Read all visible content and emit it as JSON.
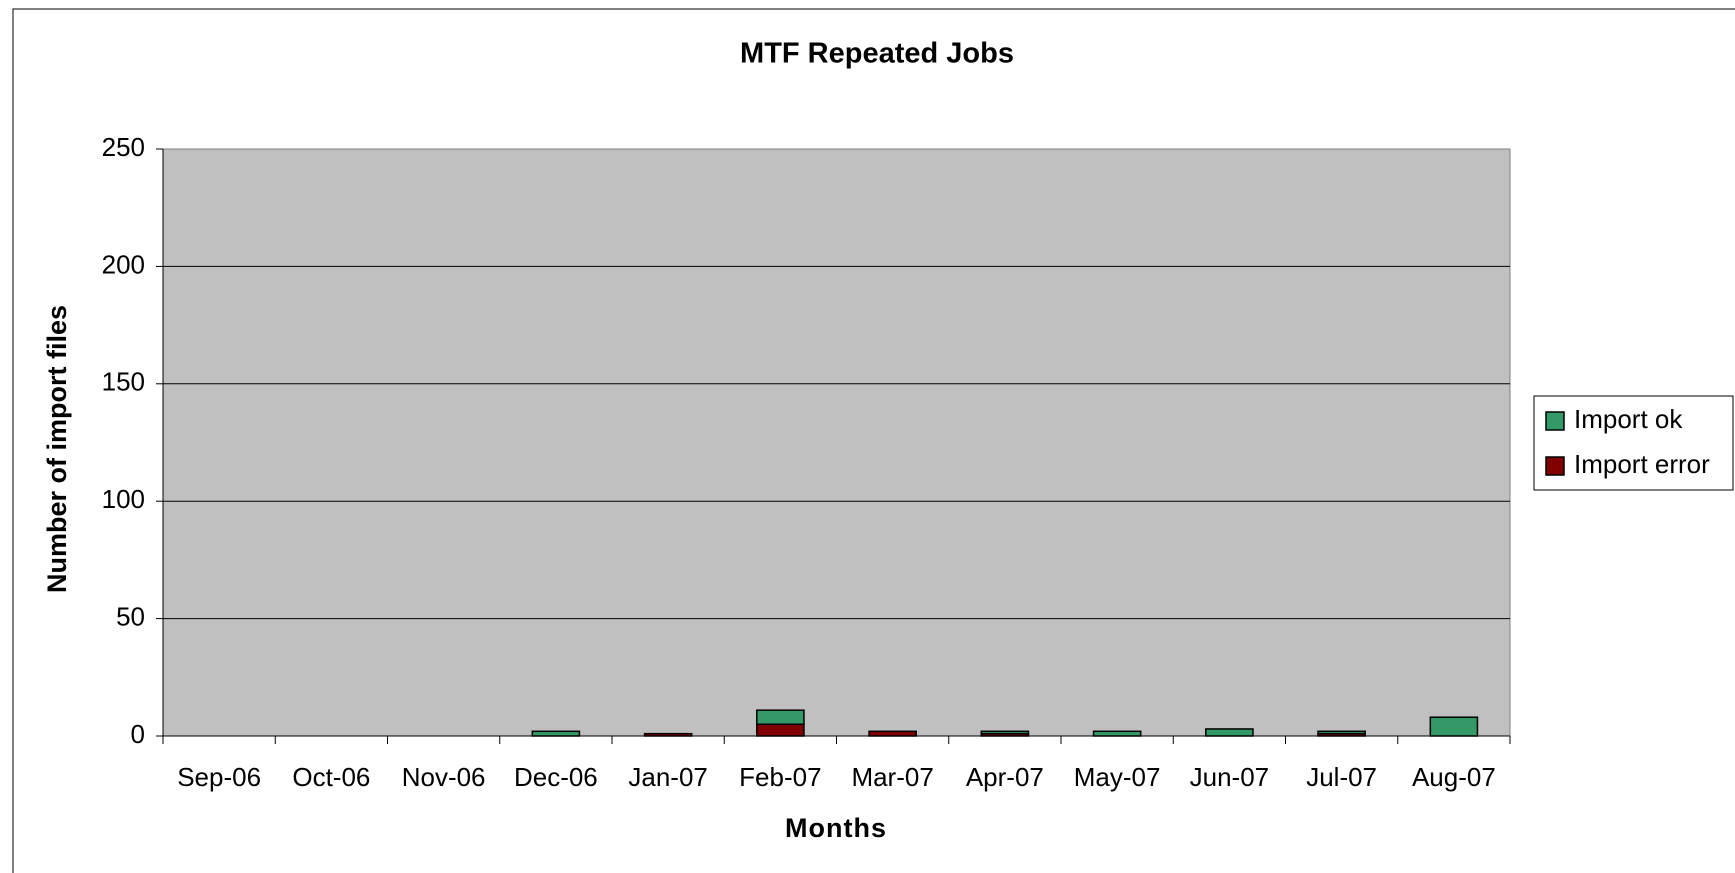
{
  "chart_data": {
    "type": "bar",
    "stacked": true,
    "title": "MTF Repeated Jobs",
    "x_label": "Months",
    "y_label": "Number of import files",
    "categories": [
      "Sep-06",
      "Oct-06",
      "Nov-06",
      "Dec-06",
      "Jan-07",
      "Feb-07",
      "Mar-07",
      "Apr-07",
      "May-07",
      "Jun-07",
      "Jul-07",
      "Aug-07"
    ],
    "series": [
      {
        "name": "Import ok",
        "color": "#339966",
        "values": [
          0,
          0,
          0,
          2,
          0,
          6,
          0,
          1,
          2,
          3,
          1,
          8
        ]
      },
      {
        "name": "Import error",
        "color": "#800000",
        "values": [
          0,
          0,
          0,
          0,
          1,
          5,
          2,
          1,
          0,
          0,
          1,
          0
        ]
      }
    ],
    "ylim": [
      0,
      250
    ],
    "yticks": [
      0,
      50,
      100,
      150,
      200,
      250
    ],
    "grid": true,
    "plot_background": "#c0c0c0",
    "legend": "right"
  }
}
